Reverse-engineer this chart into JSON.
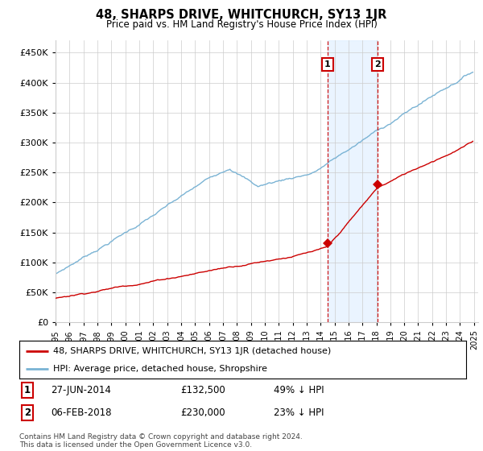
{
  "title": "48, SHARPS DRIVE, WHITCHURCH, SY13 1JR",
  "subtitle": "Price paid vs. HM Land Registry's House Price Index (HPI)",
  "ylim": [
    0,
    470000
  ],
  "yticks": [
    0,
    50000,
    100000,
    150000,
    200000,
    250000,
    300000,
    350000,
    400000,
    450000
  ],
  "hpi_color": "#7ab3d4",
  "price_color": "#cc0000",
  "sale1_year": 2014.5,
  "sale1_price": 132500,
  "sale1_date_label": "27-JUN-2014",
  "sale1_pct": "49% ↓ HPI",
  "sale2_year": 2018.08,
  "sale2_price": 230000,
  "sale2_date_label": "06-FEB-2018",
  "sale2_pct": "23% ↓ HPI",
  "legend_line1": "48, SHARPS DRIVE, WHITCHURCH, SY13 1JR (detached house)",
  "legend_line2": "HPI: Average price, detached house, Shropshire",
  "footnote": "Contains HM Land Registry data © Crown copyright and database right 2024.\nThis data is licensed under the Open Government Licence v3.0.",
  "bg_color": "#ffffff",
  "grid_color": "#cccccc",
  "shaded_color": "#ddeeff"
}
